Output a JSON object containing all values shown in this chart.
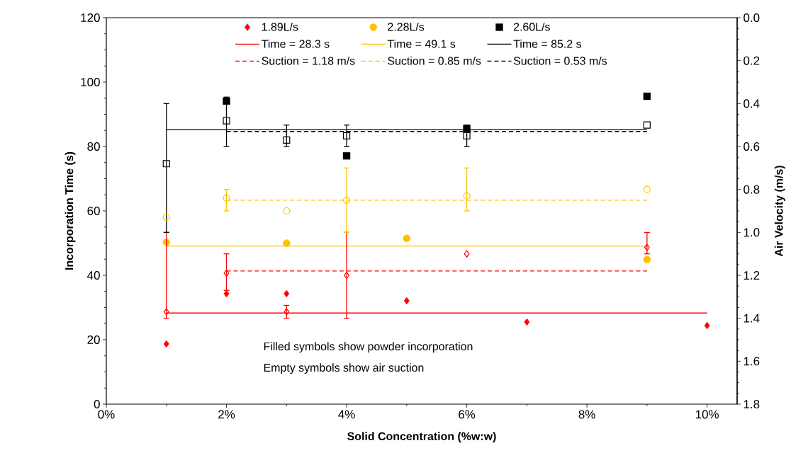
{
  "chart_data": {
    "type": "scatter",
    "xlabel": "Solid Concentration (%w:w)",
    "ylabel": "Incorporation Time (s)",
    "y2label": "Air Velocity (m/s)",
    "xlim": [
      0,
      0.105
    ],
    "xticks": [
      {
        "value": 0,
        "label": "0%"
      },
      {
        "value": 0.02,
        "label": "2%"
      },
      {
        "value": 0.04,
        "label": "4%"
      },
      {
        "value": 0.06,
        "label": "6%"
      },
      {
        "value": 0.08,
        "label": "8%"
      },
      {
        "value": 0.1,
        "label": "10%"
      }
    ],
    "ylim": [
      0,
      120
    ],
    "yticks": [
      0,
      20,
      40,
      60,
      80,
      100,
      120
    ],
    "y2lim": [
      1.8,
      0
    ],
    "y2ticks": [
      {
        "value": 0,
        "label": "0.0"
      },
      {
        "value": 0.2,
        "label": "0.2"
      },
      {
        "value": 0.4,
        "label": "0.4"
      },
      {
        "value": 0.6,
        "label": "0.6"
      },
      {
        "value": 0.8,
        "label": "0.8"
      },
      {
        "value": 1,
        "label": "1.0"
      },
      {
        "value": 1.2,
        "label": "1.2"
      },
      {
        "value": 1.4,
        "label": "1.4"
      },
      {
        "value": 1.6,
        "label": "1.6"
      },
      {
        "value": 1.8,
        "label": "1.8"
      }
    ],
    "legend": "top",
    "annotations": [
      "Filled symbols show powder incorporation",
      "Empty symbols show air suction"
    ],
    "series": [
      {
        "name": "1.89L/s",
        "marker": "diamond",
        "color": "#ff0000",
        "x": [
          0.01,
          0.02,
          0.03,
          0.05,
          0.07,
          0.1
        ],
        "values": [
          18.7,
          34.3,
          34.3,
          32.1,
          25.5,
          24.4
        ]
      },
      {
        "name": "2.28L/s",
        "marker": "circle",
        "color": "#ffc000",
        "x": [
          0.01,
          0.03,
          0.05,
          0.09
        ],
        "values": [
          50.3,
          50.0,
          51.5,
          44.9
        ]
      },
      {
        "name": "2.60L/s",
        "marker": "square",
        "color": "#000000",
        "x": [
          0.02,
          0.04,
          0.06,
          0.09
        ],
        "values": [
          94.1,
          77.1,
          85.6,
          95.6
        ]
      },
      {
        "name": "Time = 28.3 s",
        "type": "line",
        "line_style": "solid",
        "color": "#ff0000",
        "x": [
          0.01,
          0.1
        ],
        "values": [
          28.3,
          28.3
        ]
      },
      {
        "name": "Time = 49.1 s",
        "type": "line",
        "line_style": "solid",
        "color": "#ffc000",
        "x": [
          0.01,
          0.09
        ],
        "values": [
          49.1,
          49.1
        ]
      },
      {
        "name": "Time = 85.2 s",
        "type": "line",
        "line_style": "solid",
        "color": "#000000",
        "x": [
          0.01,
          0.09
        ],
        "values": [
          85.2,
          85.2
        ]
      },
      {
        "name": "Suction = 1.18 m/s",
        "type": "line",
        "line_style": "dashed",
        "axis": "y2",
        "color": "#ff0000",
        "x": [
          0.02,
          0.09
        ],
        "values": [
          1.18,
          1.18
        ]
      },
      {
        "name": "Suction = 0.85 m/s",
        "type": "line",
        "line_style": "dashed",
        "axis": "y2",
        "color": "#ffc000",
        "x": [
          0.02,
          0.09
        ],
        "values": [
          0.85,
          0.85
        ]
      },
      {
        "name": "Suction = 0.53 m/s",
        "type": "line",
        "line_style": "dashed",
        "axis": "y2",
        "color": "#000000",
        "x": [
          0.02,
          0.09
        ],
        "values": [
          0.53,
          0.53
        ]
      },
      {
        "marker": "diamond",
        "axis": "y2",
        "color": "#ff0000",
        "x": [
          0.01,
          0.02,
          0.03,
          0.04,
          0.06,
          0.09
        ],
        "values": [
          1.37,
          1.19,
          1.37,
          1.2,
          1.1,
          1.07
        ],
        "errors": [
          [
            1.0,
            1.4
          ],
          [
            1.1,
            1.27
          ],
          [
            1.34,
            1.4
          ],
          [
            1.0,
            1.4
          ],
          null,
          [
            1.0,
            1.1
          ]
        ]
      },
      {
        "marker": "circle",
        "axis": "y2",
        "color": "#ffc000",
        "x": [
          0.01,
          0.02,
          0.03,
          0.04,
          0.06,
          0.09
        ],
        "values": [
          0.93,
          0.84,
          0.9,
          0.85,
          0.83,
          0.8
        ],
        "errors": [
          null,
          [
            0.8,
            0.9
          ],
          null,
          [
            0.7,
            1.0
          ],
          [
            0.7,
            0.9
          ],
          null
        ]
      },
      {
        "marker": "square",
        "axis": "y2",
        "color": "#000000",
        "x": [
          0.01,
          0.02,
          0.03,
          0.04,
          0.06,
          0.09
        ],
        "values": [
          0.68,
          0.48,
          0.57,
          0.55,
          0.55,
          0.5
        ],
        "errors": [
          [
            0.4,
            1.0
          ],
          [
            0.37,
            0.6
          ],
          [
            0.5,
            0.6
          ],
          [
            0.5,
            0.6
          ],
          [
            0.5,
            0.6
          ],
          null
        ]
      }
    ]
  }
}
